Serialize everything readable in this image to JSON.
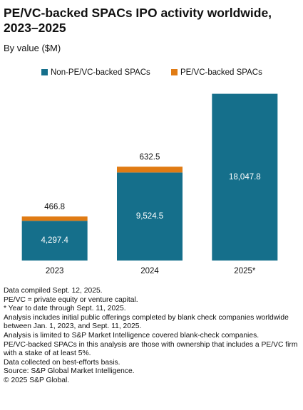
{
  "chart_data": {
    "type": "stacked_bar",
    "title": "PE/VC-backed SPACs IPO activity worldwide, 2023–2025",
    "subtitle": "By value ($M)",
    "categories": [
      "2023",
      "2024",
      "2025*"
    ],
    "series": [
      {
        "name": "Non-PE/VC-backed SPACs",
        "color": "#156f8b",
        "values": [
          4297.4,
          9524.5,
          18047.8
        ],
        "value_labels": [
          "4,297.4",
          "9,524.5",
          "18,047.8"
        ]
      },
      {
        "name": "PE/VC-backed SPACs",
        "color": "#e07b14",
        "values": [
          466.8,
          632.5,
          null
        ],
        "value_labels": [
          "466.8",
          "632.5",
          null
        ]
      }
    ],
    "ylim": [
      0,
      18100
    ],
    "notes": [
      "Data compiled Sept. 12, 2025.",
      "PE/VC = private equity or venture capital.",
      "* Year to date through Sept. 11, 2025.",
      "Analysis includes initial public offerings completed by blank check companies worldwide between Jan. 1, 2023, and Sept. 11, 2025.",
      "Analysis is limited to S&P Market Intelligence covered blank-check companies.",
      "PE/VC-backed SPACs in this analysis are those with ownership that includes a PE/VC firm with a stake of at least 5%.",
      "Data collected on best-efforts basis.",
      "Source: S&P Global Market Intelligence.",
      "© 2025 S&P Global."
    ]
  }
}
